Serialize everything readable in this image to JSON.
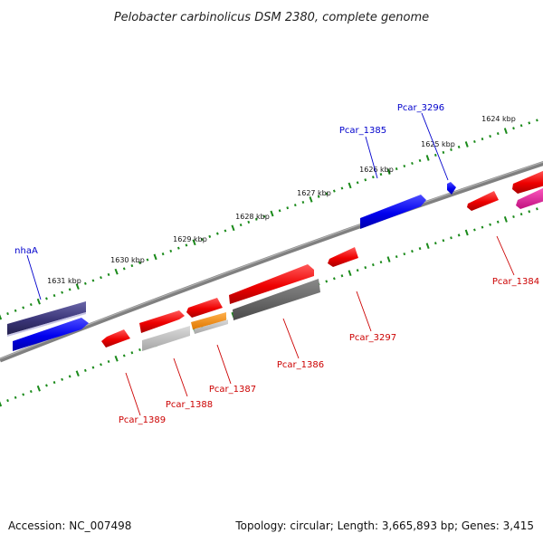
{
  "title": "Pelobacter carbinolicus DSM 2380, complete genome",
  "footer": {
    "accession": "Accession: NC_007498",
    "summary": "Topology: circular; Length: 3,665,893 bp; Genes: 3,415"
  },
  "colors": {
    "backbone": "#808080",
    "tick": "#1a8a1a",
    "forward_label": "#0000cc",
    "reverse_label": "#cc0000",
    "forward_gene": "#0000ee",
    "forward_gene_dark": "#3a3578",
    "reverse_gene": "#ee0000",
    "reverse_gene_orange": "#ff8c00",
    "reverse_gene_magenta": "#e0149a",
    "feature_gray": "#666666",
    "feature_lightgray": "#bcbcbc"
  },
  "scale_labels": [
    "1631 kbp",
    "1630 kbp",
    "1629 kbp",
    "1628 kbp",
    "1627 kbp",
    "1626 kbp",
    "1625 kbp",
    "1624 kbp"
  ],
  "gene_labels": {
    "forward": [
      "nhaA",
      "Pcar_1385",
      "Pcar_3296"
    ],
    "reverse": [
      "Pcar_1389",
      "Pcar_1388",
      "Pcar_1387",
      "Pcar_1386",
      "Pcar_3297",
      "Pcar_1384"
    ]
  }
}
